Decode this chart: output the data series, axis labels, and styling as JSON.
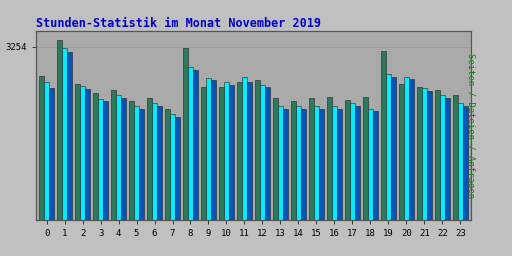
{
  "title": "Stunden-Statistik im Monat November 2019",
  "ylabel": "Seiten / Dateien / Anfragen",
  "xlabel_values": [
    0,
    1,
    2,
    3,
    4,
    5,
    6,
    7,
    8,
    9,
    10,
    11,
    12,
    13,
    14,
    15,
    16,
    17,
    18,
    19,
    20,
    21,
    22,
    23
  ],
  "ytick_label": "3254",
  "ytick_value": 3254,
  "green_bars": [
    2700,
    3380,
    2560,
    2390,
    2440,
    2240,
    2290,
    2090,
    3230,
    2500,
    2490,
    2590,
    2620,
    2290,
    2240,
    2290,
    2300,
    2250,
    2310,
    3170,
    2560,
    2490,
    2440,
    2340
  ],
  "cyan_bars": [
    2580,
    3220,
    2510,
    2270,
    2340,
    2140,
    2190,
    1990,
    2870,
    2670,
    2580,
    2680,
    2540,
    2130,
    2140,
    2140,
    2140,
    2190,
    2090,
    2740,
    2690,
    2470,
    2340,
    2190
  ],
  "blue_bars": [
    2480,
    3150,
    2460,
    2230,
    2290,
    2090,
    2140,
    1940,
    2820,
    2620,
    2530,
    2580,
    2490,
    2080,
    2090,
    2090,
    2090,
    2140,
    2040,
    2680,
    2640,
    2420,
    2290,
    2140
  ],
  "bar_width": 0.27,
  "green_color": "#2d7a5a",
  "cyan_color": "#00eeff",
  "blue_color": "#0055bb",
  "bg_color": "#c0c0c0",
  "plot_bg_color": "#aaaaaa",
  "title_color": "#0000cc",
  "ylabel_color": "#008800",
  "grid_color": "#999999",
  "border_color": "#555555",
  "ylim_min": 0,
  "ylim_max": 3550,
  "figwidth": 5.12,
  "figheight": 2.56,
  "dpi": 100
}
